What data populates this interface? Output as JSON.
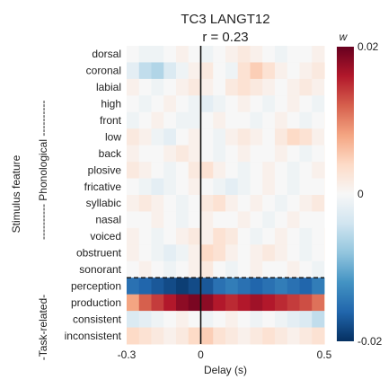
{
  "chart_data": {
    "type": "heatmap",
    "title": "TC3 LANGT12",
    "subtitle": "r = 0.23",
    "xlabel": "Delay (s)",
    "ylabel": "Stimulus feature",
    "group_labels": [
      {
        "label": "---------- Phonological ----------",
        "rows": [
          0,
          14
        ]
      },
      {
        "label": "-Task-related-",
        "rows": [
          15,
          18
        ]
      }
    ],
    "x_ticks": [
      {
        "value": -0.3,
        "label": "-0.3"
      },
      {
        "value": 0,
        "label": "0"
      },
      {
        "value": 0.5,
        "label": "0.5"
      }
    ],
    "xlim": [
      -0.3,
      0.5
    ],
    "delay_step": 0.05,
    "rows": [
      "dorsal",
      "coronal",
      "labial",
      "high",
      "front",
      "low",
      "back",
      "plosive",
      "fricative",
      "syllabic",
      "nasal",
      "voiced",
      "obstruent",
      "sonorant",
      "perception",
      "production",
      "consistent",
      "inconsistent"
    ],
    "colorbar": {
      "label": "w",
      "min": -0.02,
      "max": 0.02,
      "ticks": [
        {
          "value": 0.02,
          "label": "0.02"
        },
        {
          "value": 0,
          "label": "0"
        },
        {
          "value": -0.02,
          "label": "-0.02"
        }
      ],
      "colormap": "RdBu_r"
    },
    "zero_line_x": 0,
    "separator_after_row": "sonorant",
    "values": [
      [
        0.0,
        -0.001,
        -0.001,
        0.0,
        0.001,
        0.0,
        -0.001,
        0.0,
        0.001,
        0.002,
        0.001,
        0.0,
        -0.001,
        0.0,
        0.0,
        0.001,
        0.001
      ],
      [
        -0.002,
        -0.005,
        -0.006,
        -0.003,
        -0.001,
        0.001,
        0.002,
        0.0,
        -0.001,
        0.003,
        0.005,
        0.003,
        0.001,
        0.0,
        0.001,
        0.002,
        0.003
      ],
      [
        0.001,
        0.0,
        -0.001,
        0.0,
        0.001,
        0.002,
        0.001,
        0.0,
        0.002,
        0.003,
        0.002,
        0.001,
        0.0,
        0.001,
        0.002,
        0.001,
        0.0
      ],
      [
        0.0,
        -0.001,
        0.0,
        0.001,
        0.0,
        -0.001,
        -0.002,
        -0.001,
        0.0,
        0.001,
        0.0,
        -0.001,
        0.0,
        0.001,
        0.0,
        -0.001,
        0.0
      ],
      [
        -0.001,
        0.0,
        0.001,
        0.0,
        -0.001,
        -0.001,
        0.0,
        0.001,
        0.0,
        0.0,
        -0.001,
        0.0,
        0.001,
        0.0,
        -0.001,
        0.0,
        0.001
      ],
      [
        0.002,
        0.001,
        -0.001,
        -0.002,
        0.0,
        0.001,
        0.0,
        -0.001,
        0.001,
        0.002,
        0.001,
        0.0,
        0.002,
        0.004,
        0.003,
        0.001,
        0.0
      ],
      [
        0.001,
        0.0,
        0.0,
        0.001,
        0.002,
        0.001,
        0.0,
        -0.001,
        0.0,
        0.001,
        0.0,
        0.0,
        0.001,
        0.0,
        -0.001,
        0.0,
        0.001
      ],
      [
        0.002,
        0.001,
        0.0,
        -0.001,
        0.0,
        0.002,
        0.003,
        0.001,
        0.0,
        -0.001,
        0.0,
        0.001,
        0.0,
        -0.001,
        0.0,
        0.001,
        0.002
      ],
      [
        0.0,
        -0.001,
        -0.002,
        -0.001,
        0.0,
        0.001,
        0.0,
        -0.001,
        -0.002,
        -0.001,
        0.0,
        0.001,
        0.0,
        -0.001,
        0.0,
        0.0,
        0.001
      ],
      [
        0.001,
        0.002,
        0.001,
        0.0,
        -0.001,
        0.0,
        0.002,
        0.003,
        0.001,
        0.0,
        0.001,
        0.0,
        -0.001,
        0.0,
        0.001,
        0.002,
        0.001
      ],
      [
        0.0,
        0.0,
        0.001,
        0.0,
        -0.001,
        0.0,
        0.001,
        0.0,
        0.0,
        0.001,
        0.0,
        -0.001,
        0.0,
        0.001,
        0.0,
        0.0,
        0.0
      ],
      [
        0.001,
        0.0,
        -0.001,
        0.0,
        0.001,
        0.002,
        0.001,
        0.003,
        0.002,
        0.0,
        -0.001,
        0.0,
        0.001,
        0.0,
        -0.001,
        0.0,
        0.001
      ],
      [
        0.001,
        0.0,
        -0.001,
        -0.002,
        -0.001,
        0.001,
        0.004,
        0.003,
        0.001,
        0.0,
        0.001,
        0.002,
        0.001,
        0.0,
        -0.001,
        0.0,
        0.001
      ],
      [
        0.0,
        0.001,
        0.0,
        -0.001,
        0.0,
        0.001,
        0.002,
        0.0,
        -0.001,
        0.0,
        0.001,
        0.0,
        0.0,
        0.001,
        0.0,
        -0.001,
        0.0
      ],
      [
        -0.015,
        -0.016,
        -0.017,
        -0.018,
        -0.019,
        -0.018,
        -0.017,
        -0.015,
        -0.014,
        -0.015,
        -0.016,
        -0.015,
        -0.014,
        -0.015,
        -0.016,
        -0.014,
        -0.012
      ],
      [
        0.008,
        0.012,
        0.014,
        0.016,
        0.018,
        0.019,
        0.018,
        0.016,
        0.015,
        0.016,
        0.017,
        0.016,
        0.015,
        0.014,
        0.013,
        0.011,
        0.008
      ],
      [
        -0.003,
        -0.002,
        -0.001,
        0.0,
        0.001,
        0.0,
        -0.001,
        0.0,
        0.001,
        0.0,
        -0.001,
        0.0,
        -0.001,
        -0.002,
        -0.003,
        -0.005,
        -0.004
      ],
      [
        0.004,
        0.003,
        0.002,
        0.001,
        0.002,
        0.004,
        0.005,
        0.003,
        0.002,
        0.001,
        0.002,
        0.003,
        0.002,
        0.001,
        0.002,
        0.003,
        0.004
      ]
    ]
  }
}
